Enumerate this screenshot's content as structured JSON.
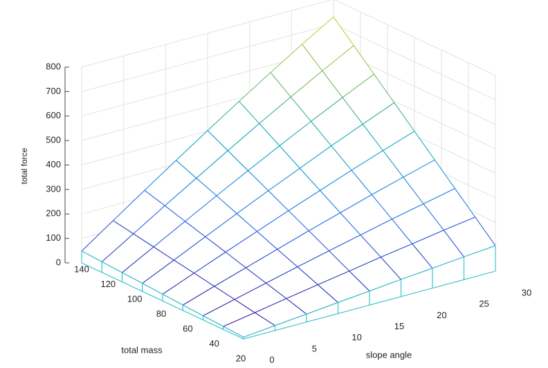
{
  "chart_data": {
    "type": "mesh",
    "xlabel": "slope angle",
    "ylabel": "total mass",
    "zlabel": "total force",
    "x": [
      0,
      3.75,
      7.5,
      11.25,
      15,
      18.75,
      22.5,
      26.25,
      30
    ],
    "y": [
      20,
      35,
      50,
      65,
      80,
      95,
      110,
      125,
      140
    ],
    "z": [
      [
        7,
        20,
        32,
        45,
        57,
        70,
        81,
        93,
        104
      ],
      [
        12,
        34,
        57,
        79,
        100,
        122,
        142,
        163,
        182
      ],
      [
        17,
        49,
        81,
        113,
        144,
        174,
        204,
        232,
        260
      ],
      [
        22,
        64,
        105,
        146,
        187,
        226,
        265,
        302,
        338
      ],
      [
        27,
        79,
        130,
        180,
        230,
        278,
        326,
        372,
        416
      ],
      [
        33,
        93,
        154,
        214,
        273,
        330,
        387,
        441,
        494
      ],
      [
        38,
        108,
        178,
        248,
        316,
        383,
        448,
        511,
        572
      ],
      [
        43,
        123,
        203,
        281,
        359,
        435,
        509,
        581,
        650
      ],
      [
        48,
        138,
        227,
        315,
        402,
        487,
        570,
        651,
        728
      ]
    ],
    "xlim": [
      0,
      30
    ],
    "xticks": [
      0,
      5,
      10,
      15,
      20,
      25,
      30
    ],
    "ylim": [
      20,
      140
    ],
    "yticks": [
      20,
      40,
      60,
      80,
      100,
      120,
      140
    ],
    "zlim": [
      0,
      800
    ],
    "zticks": [
      0,
      100,
      200,
      300,
      400,
      500,
      600,
      700,
      800
    ],
    "grid": true,
    "colormap": "parula"
  }
}
